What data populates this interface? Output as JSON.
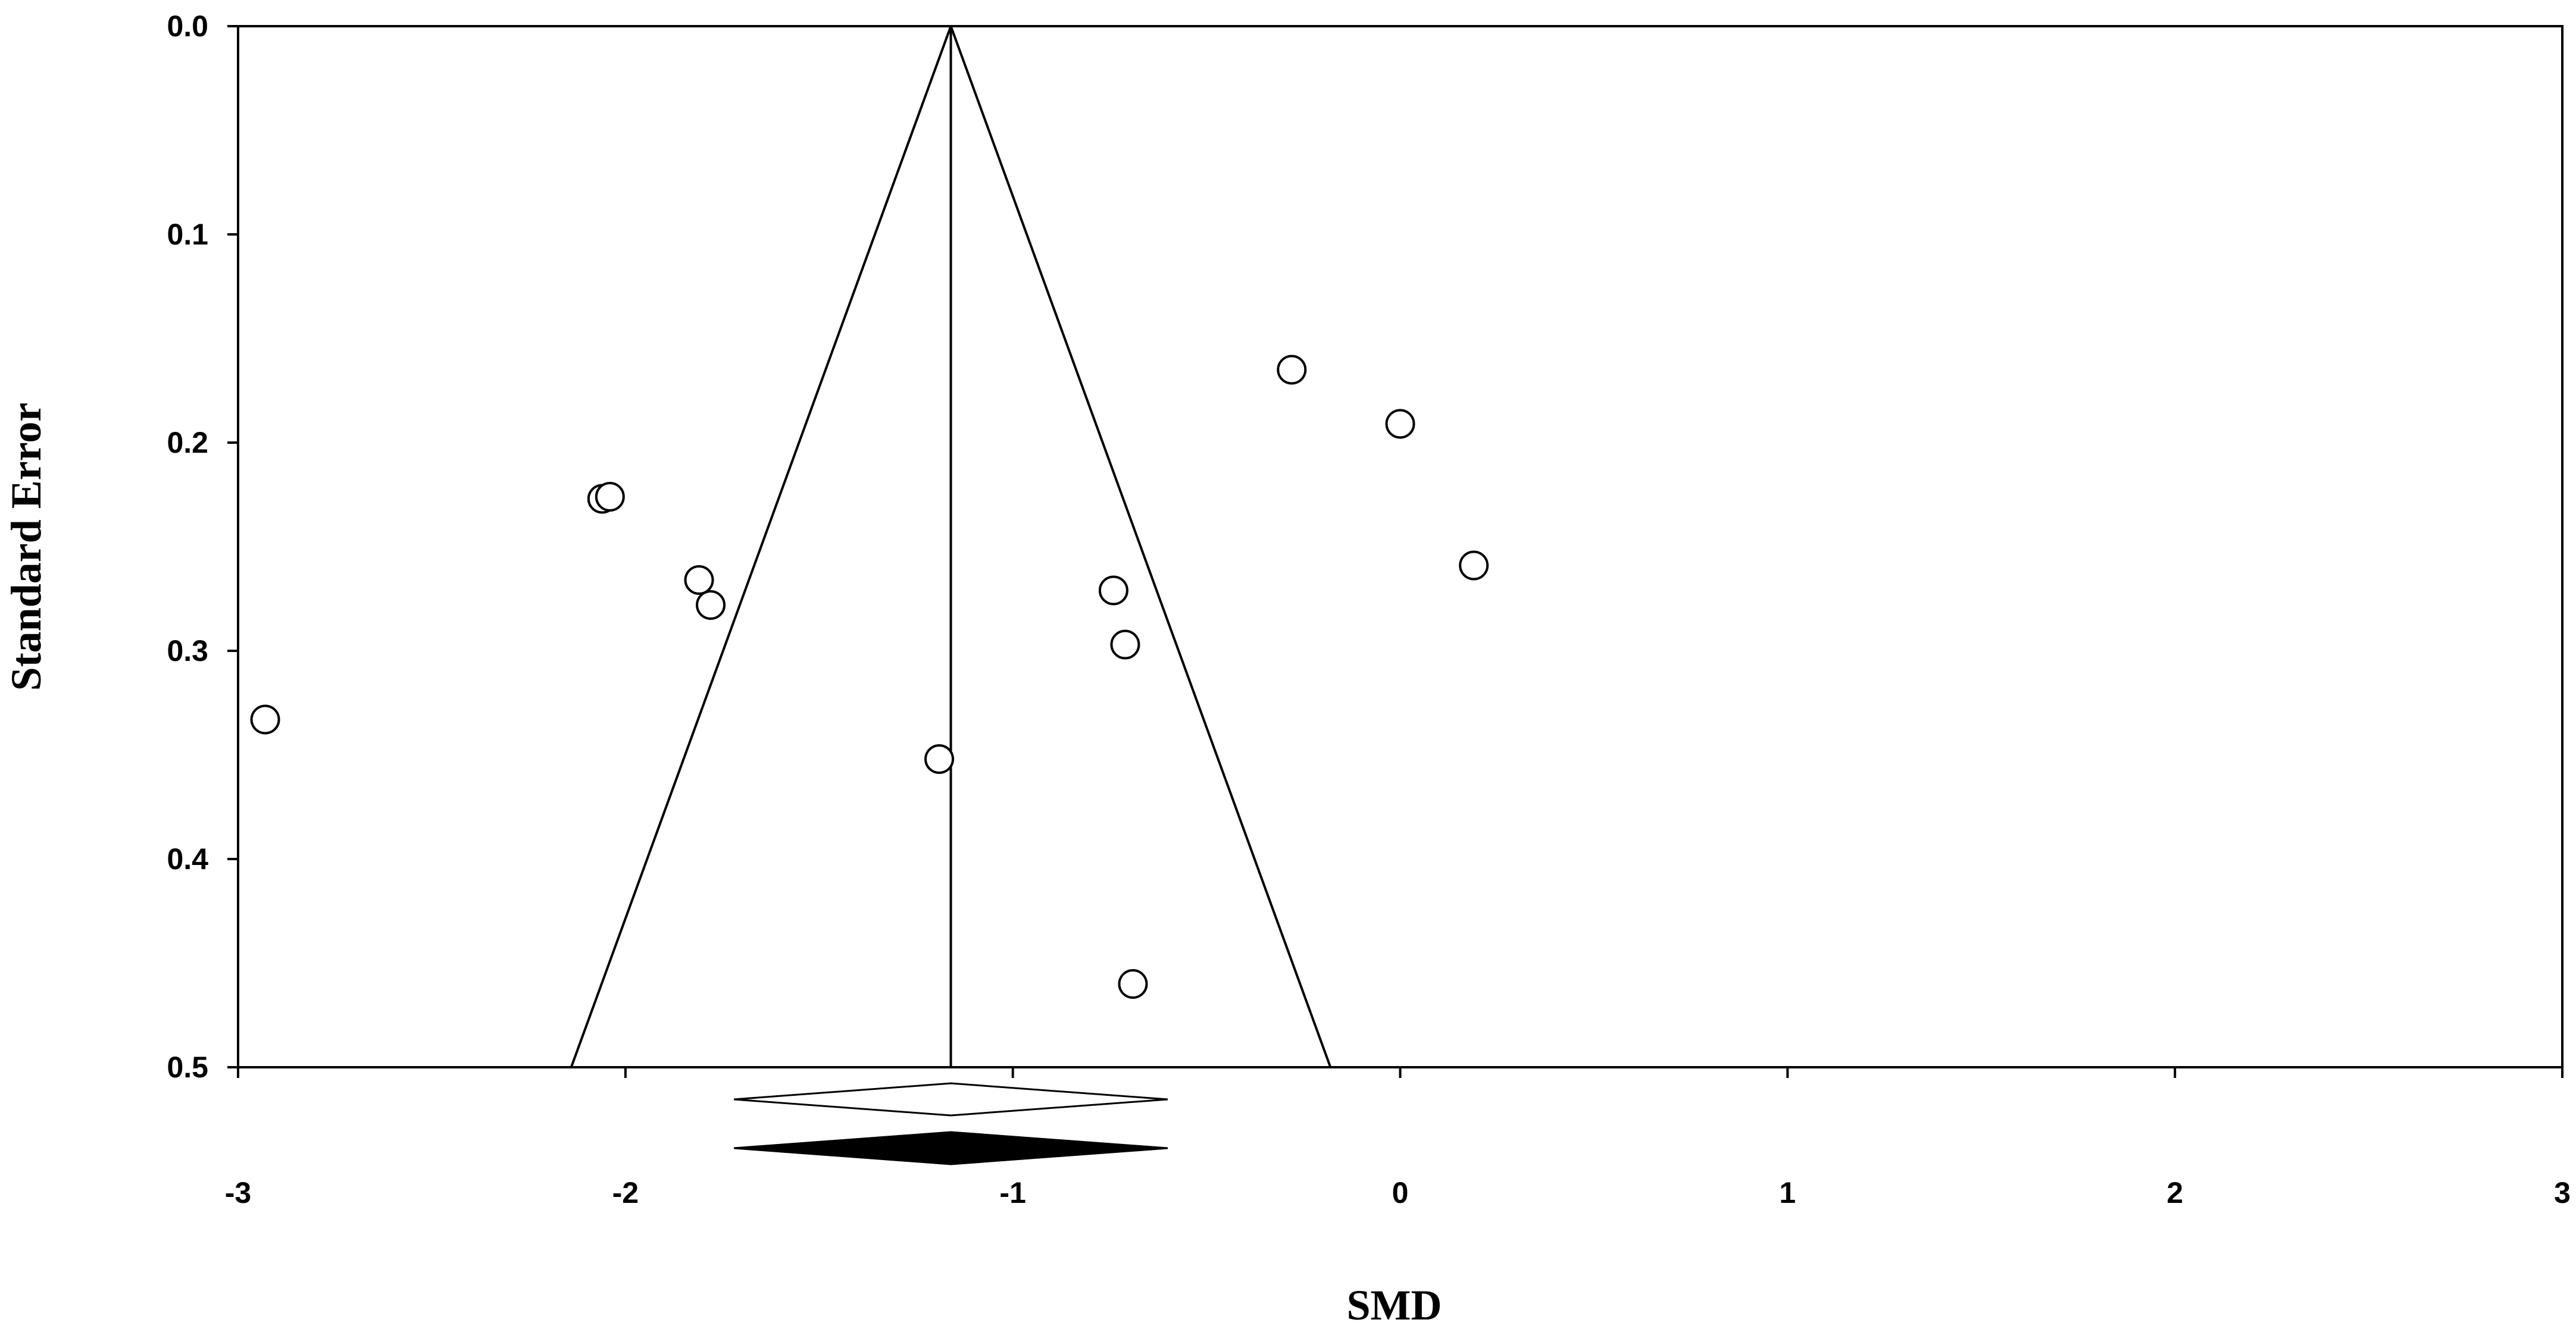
{
  "chart_data": {
    "type": "scatter",
    "subtype": "funnel-plot",
    "xlabel": "SMD",
    "ylabel": "Standard Error",
    "xlim": [
      -3,
      3
    ],
    "ylim": [
      0.0,
      0.5
    ],
    "y_inverted": true,
    "x_ticks": [
      "-3",
      "-2",
      "-1",
      "0",
      "1",
      "2",
      "3"
    ],
    "y_ticks": [
      "0.0",
      "0.1",
      "0.2",
      "0.3",
      "0.4",
      "0.5"
    ],
    "grid": false,
    "pooled_estimate": -1.16,
    "funnel_bottom": [
      -2.14,
      -0.18
    ],
    "points": [
      {
        "x": -2.93,
        "y": 0.333
      },
      {
        "x": -2.06,
        "y": 0.227
      },
      {
        "x": -2.04,
        "y": 0.226
      },
      {
        "x": -1.81,
        "y": 0.266
      },
      {
        "x": -1.78,
        "y": 0.278
      },
      {
        "x": -1.19,
        "y": 0.352
      },
      {
        "x": -0.74,
        "y": 0.271
      },
      {
        "x": -0.71,
        "y": 0.297
      },
      {
        "x": -0.69,
        "y": 0.46
      },
      {
        "x": -0.28,
        "y": 0.165
      },
      {
        "x": 0.0,
        "y": 0.191
      },
      {
        "x": 0.19,
        "y": 0.259
      }
    ],
    "summary_diamonds": [
      {
        "style": "open",
        "center": -1.16,
        "ci": [
          -1.72,
          -0.6
        ]
      },
      {
        "style": "filled",
        "center": -1.16,
        "ci": [
          -1.72,
          -0.6
        ]
      }
    ]
  }
}
